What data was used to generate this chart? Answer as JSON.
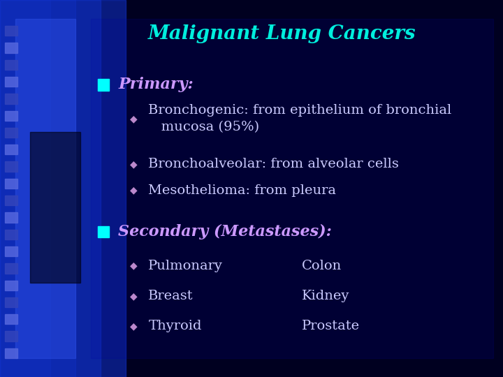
{
  "title": "Malignant Lung Cancers",
  "title_color": "#00EEDD",
  "title_fontsize": 20,
  "background_color": "#000020",
  "bullet1_label": "Primary:",
  "bullet1_color": "#CC99FF",
  "bullet1_fontsize": 16,
  "sub_bullets_1_line1": "Bronchogenic: from epithelium of bronchial",
  "sub_bullets_1_line2": "   mucosa (95%)",
  "sub_bullets_1_rest": [
    "Bronchoalveolar: from alveolar cells",
    "Mesothelioma: from pleura"
  ],
  "bullet2_label": "Secondary (Metastases):",
  "bullet2_color": "#CC99FF",
  "bullet2_fontsize": 16,
  "sub_bullets_2_left": [
    "Pulmonary",
    "Breast",
    "Thyroid"
  ],
  "sub_bullets_2_right": [
    "Colon",
    "Kidney",
    "Prostate"
  ],
  "sub_bullet_color": "#CCCCFF",
  "sub_bullet_fontsize": 14,
  "diamond_color": "#BB88CC",
  "square_color": "#00FFFF",
  "left_blue_glow_color": "#2233CC",
  "tile_color_light": "#5566DD",
  "tile_color_dark": "#3344BB"
}
